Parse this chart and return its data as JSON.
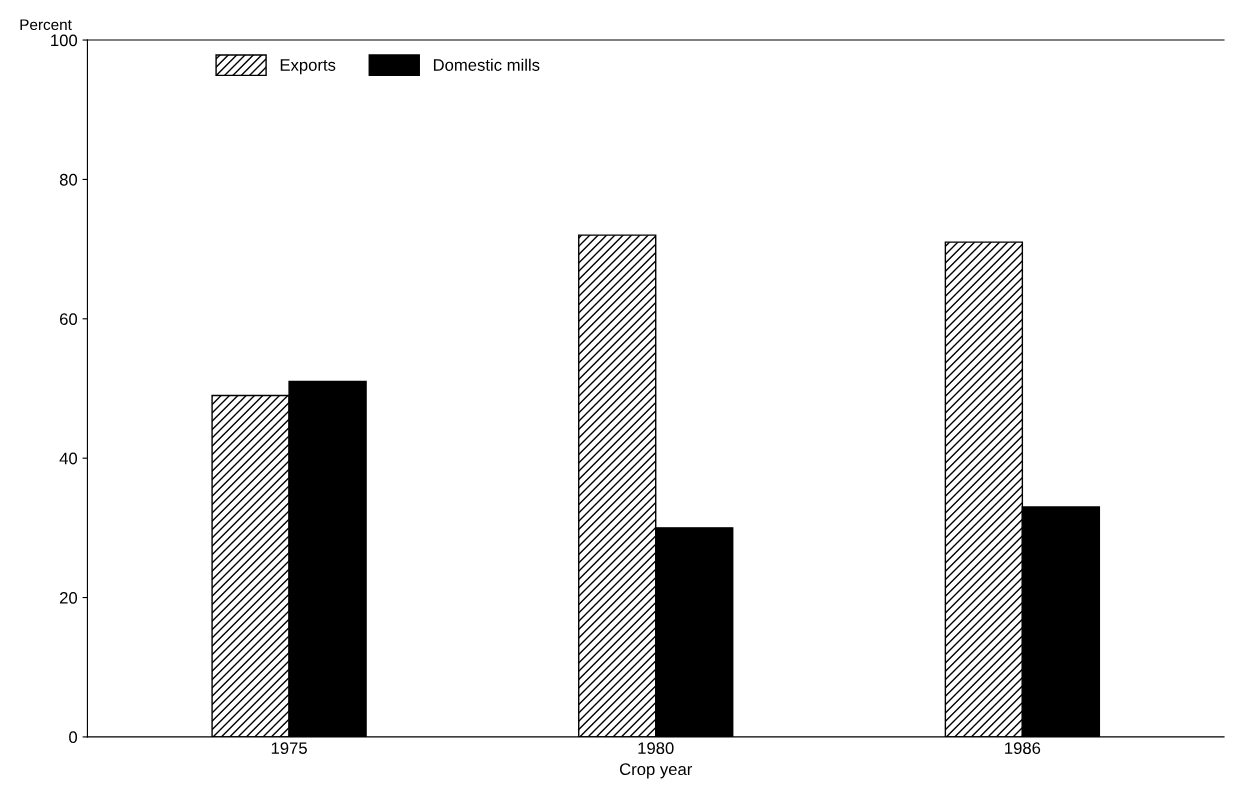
{
  "chart_data": {
    "type": "bar",
    "ylabel": "Percent",
    "xlabel": "Crop year",
    "categories": [
      "1975",
      "1980",
      "1986"
    ],
    "series": [
      {
        "name": "Exports",
        "color": "#000000",
        "values": [
          49,
          72,
          71
        ]
      },
      {
        "name": "Domestic mills",
        "color": "#000000",
        "values": [
          51,
          30,
          33
        ]
      }
    ],
    "ylim": [
      0,
      100
    ],
    "yticks": [
      0,
      20,
      40,
      60,
      80,
      100
    ],
    "grid": false,
    "legend": "top left"
  }
}
